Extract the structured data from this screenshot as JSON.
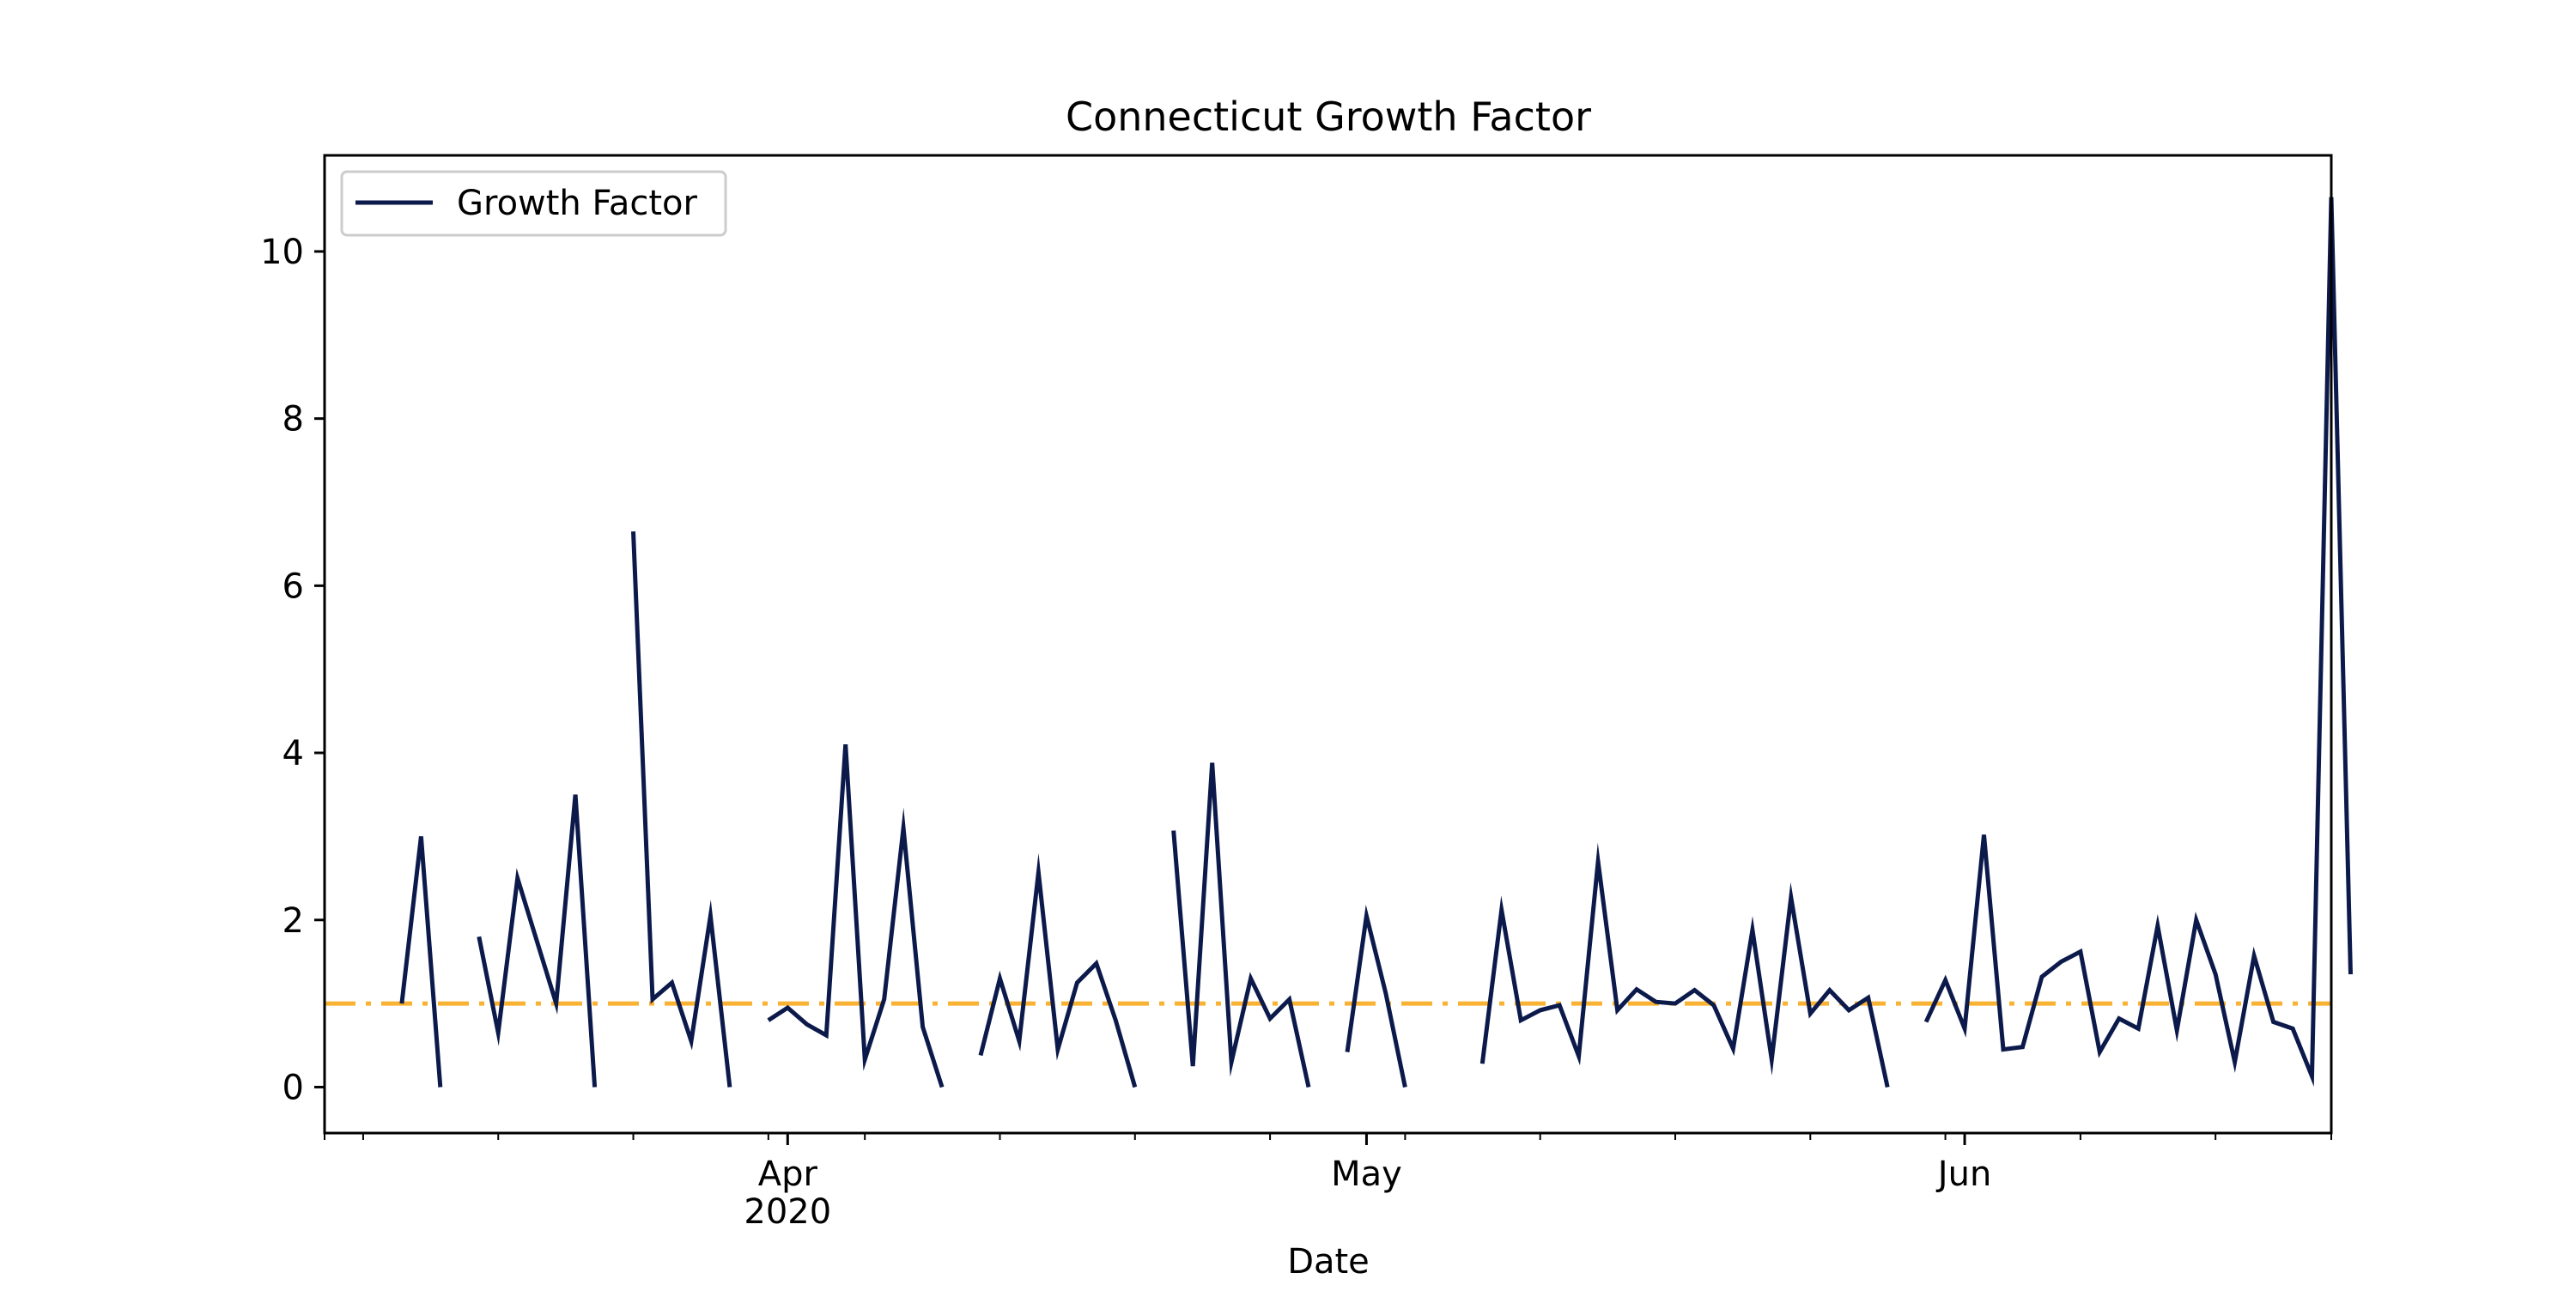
{
  "chart_data": {
    "type": "line",
    "title": "Connecticut Growth Factor",
    "xlabel": "Date",
    "ylabel": "",
    "x_start": "2020-03-08",
    "x_end": "2020-06-20",
    "xlim": [
      "2020-03-08",
      "2020-06-20"
    ],
    "ylim": [
      -0.55,
      11.15
    ],
    "y_ticks": [
      0,
      2,
      4,
      6,
      8,
      10
    ],
    "x_major_ticks": [
      {
        "date": "2020-04-01",
        "label": "Apr",
        "sublabel": "2020"
      },
      {
        "date": "2020-05-01",
        "label": "May",
        "sublabel": ""
      },
      {
        "date": "2020-06-01",
        "label": "Jun",
        "sublabel": ""
      }
    ],
    "x_minor_tick_dates": [
      "2020-03-08",
      "2020-03-10",
      "2020-03-17",
      "2020-03-24",
      "2020-03-31",
      "2020-04-05",
      "2020-04-12",
      "2020-04-19",
      "2020-04-26",
      "2020-05-03",
      "2020-05-10",
      "2020-05-17",
      "2020-05-24",
      "2020-05-31",
      "2020-06-07",
      "2020-06-14",
      "2020-06-20"
    ],
    "grid": false,
    "legend": {
      "position": "top-left",
      "entries": [
        "Growth Factor"
      ]
    },
    "reference_line": {
      "y": 1.0,
      "style": "dash-dot",
      "color": "#f9b233"
    },
    "series": [
      {
        "name": "Growth Factor",
        "color": "#0c1a4b",
        "points": [
          [
            "2020-03-12",
            1.0
          ],
          [
            "2020-03-13",
            3.0
          ],
          [
            "2020-03-14",
            0.0
          ],
          [
            "2020-03-16",
            1.8
          ],
          [
            "2020-03-17",
            0.65
          ],
          [
            "2020-03-18",
            2.5
          ],
          [
            "2020-03-19",
            1.75
          ],
          [
            "2020-03-20",
            1.0
          ],
          [
            "2020-03-21",
            3.5
          ],
          [
            "2020-03-22",
            0.0
          ],
          [
            "2020-03-24",
            6.65
          ],
          [
            "2020-03-25",
            1.05
          ],
          [
            "2020-03-26",
            1.25
          ],
          [
            "2020-03-27",
            0.55
          ],
          [
            "2020-03-28",
            2.05
          ],
          [
            "2020-03-29",
            0.0
          ],
          [
            "2020-03-31",
            0.8
          ],
          [
            "2020-04-01",
            0.95
          ],
          [
            "2020-04-02",
            0.75
          ],
          [
            "2020-04-03",
            0.62
          ],
          [
            "2020-04-04",
            4.1
          ],
          [
            "2020-04-05",
            0.33
          ],
          [
            "2020-04-06",
            1.05
          ],
          [
            "2020-04-07",
            3.1
          ],
          [
            "2020-04-08",
            0.72
          ],
          [
            "2020-04-09",
            0.0
          ],
          [
            "2020-04-11",
            0.38
          ],
          [
            "2020-04-12",
            1.3
          ],
          [
            "2020-04-13",
            0.55
          ],
          [
            "2020-04-14",
            2.57
          ],
          [
            "2020-04-15",
            0.45
          ],
          [
            "2020-04-16",
            1.25
          ],
          [
            "2020-04-17",
            1.48
          ],
          [
            "2020-04-18",
            0.8
          ],
          [
            "2020-04-19",
            0.0
          ],
          [
            "2020-04-21",
            3.07
          ],
          [
            "2020-04-22",
            0.25
          ],
          [
            "2020-04-23",
            3.88
          ],
          [
            "2020-04-24",
            0.3
          ],
          [
            "2020-04-25",
            1.3
          ],
          [
            "2020-04-26",
            0.82
          ],
          [
            "2020-04-27",
            1.05
          ],
          [
            "2020-04-28",
            0.0
          ],
          [
            "2020-04-30",
            0.42
          ],
          [
            "2020-05-01",
            2.05
          ],
          [
            "2020-05-02",
            1.12
          ],
          [
            "2020-05-03",
            0.0
          ],
          [
            "2020-05-07",
            0.28
          ],
          [
            "2020-05-08",
            2.12
          ],
          [
            "2020-05-09",
            0.8
          ],
          [
            "2020-05-10",
            0.92
          ],
          [
            "2020-05-11",
            0.98
          ],
          [
            "2020-05-12",
            0.37
          ],
          [
            "2020-05-13",
            2.7
          ],
          [
            "2020-05-14",
            0.92
          ],
          [
            "2020-05-15",
            1.17
          ],
          [
            "2020-05-16",
            1.02
          ],
          [
            "2020-05-17",
            1.0
          ],
          [
            "2020-05-18",
            1.16
          ],
          [
            "2020-05-19",
            0.98
          ],
          [
            "2020-05-20",
            0.46
          ],
          [
            "2020-05-21",
            1.88
          ],
          [
            "2020-05-22",
            0.33
          ],
          [
            "2020-05-23",
            2.27
          ],
          [
            "2020-05-24",
            0.88
          ],
          [
            "2020-05-25",
            1.16
          ],
          [
            "2020-05-26",
            0.92
          ],
          [
            "2020-05-27",
            1.07
          ],
          [
            "2020-05-28",
            0.0
          ],
          [
            "2020-05-30",
            0.78
          ],
          [
            "2020-05-31",
            1.28
          ],
          [
            "2020-06-01",
            0.7
          ],
          [
            "2020-06-02",
            3.02
          ],
          [
            "2020-06-03",
            0.45
          ],
          [
            "2020-06-04",
            0.48
          ],
          [
            "2020-06-05",
            1.32
          ],
          [
            "2020-06-06",
            1.5
          ],
          [
            "2020-06-07",
            1.62
          ],
          [
            "2020-06-08",
            0.42
          ],
          [
            "2020-06-09",
            0.82
          ],
          [
            "2020-06-10",
            0.7
          ],
          [
            "2020-06-11",
            1.93
          ],
          [
            "2020-06-12",
            0.68
          ],
          [
            "2020-06-13",
            2.0
          ],
          [
            "2020-06-14",
            1.35
          ],
          [
            "2020-06-15",
            0.3
          ],
          [
            "2020-06-16",
            1.57
          ],
          [
            "2020-06-17",
            0.78
          ],
          [
            "2020-06-18",
            0.7
          ],
          [
            "2020-06-19",
            0.13
          ],
          [
            "2020-06-20",
            10.65
          ],
          [
            "2020-06-21",
            1.35
          ]
        ]
      }
    ]
  }
}
